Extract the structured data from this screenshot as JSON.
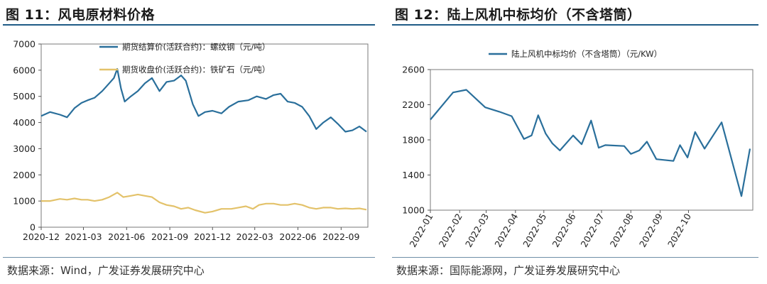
{
  "figures": [
    {
      "title": "图 11：风电原材料价格",
      "source": "数据来源：Wind，广发证券发展研究中心"
    },
    {
      "title": "图 12：陆上风机中标均价（不含塔筒）",
      "source": "数据来源：国际能源网，广发证券发展研究中心"
    }
  ],
  "chart_data": [
    {
      "type": "line",
      "title": "风电原材料价格",
      "x_ticks": [
        "2020-12",
        "2021-03",
        "2021-06",
        "2021-09",
        "2021-12",
        "2022-03",
        "2022-06",
        "2022-09"
      ],
      "ylim": [
        0,
        7000
      ],
      "y_ticks": [
        0,
        1000,
        2000,
        3000,
        4000,
        5000,
        6000,
        7000
      ],
      "legend_position": "top-center",
      "series": [
        {
          "name": "期货结算价(活跃合约)：螺纹钢（元/吨）",
          "color": "#2a6f9b",
          "points": [
            [
              "2020-12-01",
              4250
            ],
            [
              "2020-12-20",
              4400
            ],
            [
              "2021-01-10",
              4300
            ],
            [
              "2021-01-25",
              4200
            ],
            [
              "2021-02-10",
              4550
            ],
            [
              "2021-02-25",
              4750
            ],
            [
              "2021-03-10",
              4850
            ],
            [
              "2021-03-25",
              4950
            ],
            [
              "2021-04-10",
              5200
            ],
            [
              "2021-04-25",
              5500
            ],
            [
              "2021-05-05",
              5700
            ],
            [
              "2021-05-12",
              6050
            ],
            [
              "2021-05-20",
              5300
            ],
            [
              "2021-05-28",
              4800
            ],
            [
              "2021-06-10",
              5000
            ],
            [
              "2021-06-25",
              5200
            ],
            [
              "2021-07-10",
              5500
            ],
            [
              "2021-07-25",
              5700
            ],
            [
              "2021-08-10",
              5200
            ],
            [
              "2021-08-25",
              5550
            ],
            [
              "2021-09-10",
              5600
            ],
            [
              "2021-09-25",
              5800
            ],
            [
              "2021-10-05",
              5600
            ],
            [
              "2021-10-20",
              4700
            ],
            [
              "2021-11-01",
              4250
            ],
            [
              "2021-11-15",
              4400
            ],
            [
              "2021-12-01",
              4450
            ],
            [
              "2021-12-20",
              4350
            ],
            [
              "2022-01-05",
              4600
            ],
            [
              "2022-01-25",
              4800
            ],
            [
              "2022-02-15",
              4850
            ],
            [
              "2022-03-05",
              5000
            ],
            [
              "2022-03-25",
              4900
            ],
            [
              "2022-04-10",
              5050
            ],
            [
              "2022-04-25",
              5100
            ],
            [
              "2022-05-10",
              4800
            ],
            [
              "2022-05-25",
              4750
            ],
            [
              "2022-06-10",
              4600
            ],
            [
              "2022-06-25",
              4250
            ],
            [
              "2022-07-10",
              3750
            ],
            [
              "2022-07-25",
              4000
            ],
            [
              "2022-08-10",
              4200
            ],
            [
              "2022-08-25",
              3950
            ],
            [
              "2022-09-10",
              3650
            ],
            [
              "2022-09-25",
              3700
            ],
            [
              "2022-10-10",
              3850
            ],
            [
              "2022-10-25",
              3650
            ]
          ]
        },
        {
          "name": "期货收盘价(活跃合约)：铁矿石（元/吨）",
          "color": "#e3c26a",
          "points": [
            [
              "2020-12-01",
              1000
            ],
            [
              "2020-12-20",
              1000
            ],
            [
              "2021-01-10",
              1080
            ],
            [
              "2021-01-25",
              1050
            ],
            [
              "2021-02-10",
              1100
            ],
            [
              "2021-02-25",
              1050
            ],
            [
              "2021-03-10",
              1050
            ],
            [
              "2021-03-25",
              1000
            ],
            [
              "2021-04-10",
              1050
            ],
            [
              "2021-04-25",
              1150
            ],
            [
              "2021-05-12",
              1320
            ],
            [
              "2021-05-25",
              1150
            ],
            [
              "2021-06-10",
              1200
            ],
            [
              "2021-06-25",
              1250
            ],
            [
              "2021-07-10",
              1200
            ],
            [
              "2021-07-25",
              1150
            ],
            [
              "2021-08-10",
              950
            ],
            [
              "2021-08-25",
              850
            ],
            [
              "2021-09-10",
              800
            ],
            [
              "2021-09-25",
              700
            ],
            [
              "2021-10-10",
              750
            ],
            [
              "2021-10-25",
              650
            ],
            [
              "2021-11-15",
              550
            ],
            [
              "2021-12-01",
              600
            ],
            [
              "2021-12-20",
              700
            ],
            [
              "2022-01-10",
              700
            ],
            [
              "2022-01-25",
              750
            ],
            [
              "2022-02-10",
              800
            ],
            [
              "2022-02-25",
              700
            ],
            [
              "2022-03-10",
              850
            ],
            [
              "2022-03-25",
              900
            ],
            [
              "2022-04-10",
              900
            ],
            [
              "2022-04-25",
              850
            ],
            [
              "2022-05-10",
              850
            ],
            [
              "2022-05-25",
              900
            ],
            [
              "2022-06-10",
              850
            ],
            [
              "2022-06-25",
              750
            ],
            [
              "2022-07-10",
              700
            ],
            [
              "2022-07-25",
              750
            ],
            [
              "2022-08-10",
              750
            ],
            [
              "2022-08-25",
              700
            ],
            [
              "2022-09-10",
              720
            ],
            [
              "2022-09-25",
              700
            ],
            [
              "2022-10-10",
              720
            ],
            [
              "2022-10-25",
              670
            ]
          ]
        }
      ]
    },
    {
      "type": "line",
      "title": "陆上风机中标均价（不含塔筒）",
      "x_ticks": [
        "2022-01",
        "2022-02",
        "2022-03",
        "2022-04",
        "2022-05",
        "2022-06",
        "2022-07",
        "2022-08",
        "2022-09",
        "2022-10"
      ],
      "ylim": [
        1000,
        2600
      ],
      "y_ticks": [
        1000,
        1400,
        1800,
        2200,
        2600
      ],
      "legend_position": "top-center",
      "series": [
        {
          "name": "陆上风机中标均价（不含塔筒）（元/KW）",
          "color": "#2a6f9b",
          "points": [
            [
              "2022-01-01",
              2030
            ],
            [
              "2022-01-25",
              2340
            ],
            [
              "2022-02-08",
              2370
            ],
            [
              "2022-02-28",
              2170
            ],
            [
              "2022-03-15",
              2120
            ],
            [
              "2022-03-28",
              2070
            ],
            [
              "2022-04-10",
              1810
            ],
            [
              "2022-04-18",
              1850
            ],
            [
              "2022-04-25",
              2080
            ],
            [
              "2022-05-03",
              1870
            ],
            [
              "2022-05-10",
              1760
            ],
            [
              "2022-05-18",
              1680
            ],
            [
              "2022-06-01",
              1850
            ],
            [
              "2022-06-10",
              1750
            ],
            [
              "2022-06-20",
              2020
            ],
            [
              "2022-06-28",
              1710
            ],
            [
              "2022-07-05",
              1740
            ],
            [
              "2022-07-25",
              1730
            ],
            [
              "2022-08-01",
              1640
            ],
            [
              "2022-08-10",
              1680
            ],
            [
              "2022-08-18",
              1780
            ],
            [
              "2022-08-28",
              1580
            ],
            [
              "2022-09-15",
              1560
            ],
            [
              "2022-09-22",
              1740
            ],
            [
              "2022-09-30",
              1600
            ],
            [
              "2022-10-08",
              1890
            ],
            [
              "2022-10-18",
              1700
            ],
            [
              "2022-11-05",
              2000
            ],
            [
              "2022-11-26",
              1160
            ],
            [
              "2022-12-05",
              1700
            ]
          ]
        }
      ]
    }
  ]
}
